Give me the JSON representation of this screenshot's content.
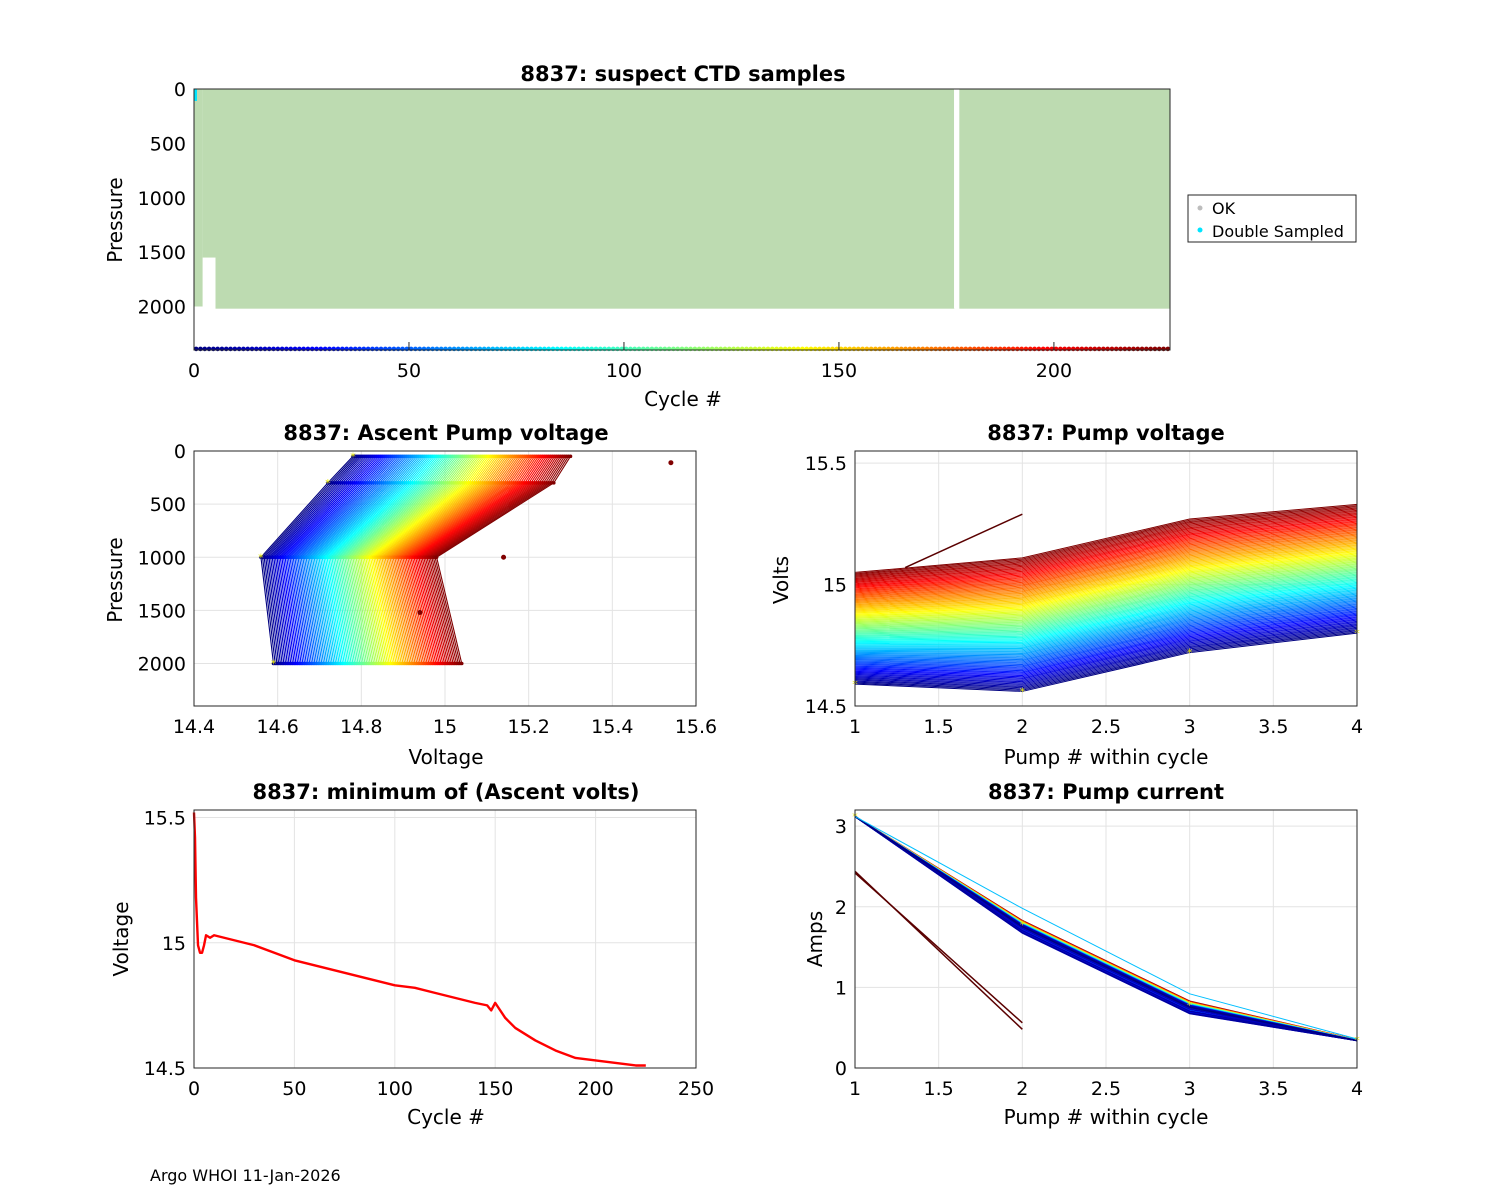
{
  "footer": "Argo WHOI 11-Jan-2026",
  "chart_data": [
    {
      "type": "scatter",
      "title": "8837: suspect CTD samples",
      "xlabel": "Cycle #",
      "ylabel": "Pressure",
      "xlim": [
        0,
        227
      ],
      "ylim": [
        2400,
        0
      ],
      "xticks": [
        0,
        50,
        100,
        150,
        200
      ],
      "yticks": [
        0,
        500,
        1000,
        1500,
        2000
      ],
      "legend": {
        "placement": "east-outside",
        "entries": [
          "OK",
          "Double Sampled"
        ]
      },
      "colors": {
        "ok": "#bddbb1",
        "double": "#00e5ff"
      },
      "profile_depth_segments": [
        {
          "cycles": [
            0,
            2
          ],
          "max_pressure": 2000
        },
        {
          "cycles": [
            2,
            5
          ],
          "max_pressure": 1550
        },
        {
          "cycles": [
            5,
            177
          ],
          "max_pressure": 2020
        },
        {
          "cycles": [
            178,
            227
          ],
          "max_pressure": 2020
        }
      ],
      "gap_cycle": 177,
      "double_sampled": {
        "cycle": 0,
        "pressure_range": [
          0,
          110
        ]
      },
      "colorbar_row_pressure": 2390
    },
    {
      "type": "line",
      "title": "8837: Ascent Pump voltage",
      "xlabel": "Voltage",
      "ylabel": "Pressure",
      "xlim": [
        14.4,
        15.6
      ],
      "ylim": [
        2400,
        0
      ],
      "xticks": [
        14.4,
        14.6,
        14.8,
        15.0,
        15.2,
        15.4,
        15.6
      ],
      "xtick_labels": [
        "14.4",
        "14.6",
        "14.8",
        "15",
        "15.2",
        "15.4",
        "15.6"
      ],
      "yticks": [
        0,
        500,
        1000,
        1500,
        2000
      ],
      "pump_pressures": [
        2000,
        1000,
        300,
        50
      ],
      "first_profile": [
        14.59,
        14.56,
        14.72,
        14.78
      ],
      "last_profile": [
        15.04,
        14.98,
        15.26,
        15.3
      ],
      "outliers": [
        {
          "x": 15.54,
          "y": 110
        },
        {
          "x": 15.14,
          "y": 1000
        },
        {
          "x": 14.94,
          "y": 1520
        }
      ]
    },
    {
      "type": "line",
      "title": "8837: Pump voltage",
      "xlabel": "Pump # within cycle",
      "ylabel": "Volts",
      "xlim": [
        1,
        4
      ],
      "ylim": [
        14.5,
        15.55
      ],
      "xticks": [
        1,
        1.5,
        2,
        2.5,
        3,
        3.5,
        4
      ],
      "xtick_labels": [
        "1",
        "1.5",
        "2",
        "2.5",
        "3",
        "3.5",
        "4"
      ],
      "yticks": [
        14.5,
        15,
        15.5
      ],
      "ytick_labels": [
        "14.5",
        "15",
        "15.5"
      ],
      "first_profile": [
        14.59,
        14.56,
        14.72,
        14.8
      ],
      "last_profile": [
        15.05,
        15.11,
        15.27,
        15.33
      ],
      "short_profiles": [
        {
          "x": [
            1.3,
            2
          ],
          "y": [
            15.07,
            15.29
          ]
        }
      ]
    },
    {
      "type": "line",
      "title": "8837: minimum of (Ascent volts)",
      "xlabel": "Cycle #",
      "ylabel": "Voltage",
      "xlim": [
        0,
        250
      ],
      "ylim": [
        14.5,
        15.53
      ],
      "xticks": [
        0,
        50,
        100,
        150,
        200,
        250
      ],
      "yticks": [
        14.5,
        15,
        15.5
      ],
      "ytick_labels": [
        "14.5",
        "15",
        "15.5"
      ],
      "color": "#ff0000",
      "x": [
        0,
        0.5,
        1,
        2,
        3,
        4,
        5,
        6,
        8,
        10,
        15,
        20,
        30,
        40,
        50,
        60,
        70,
        80,
        90,
        100,
        110,
        120,
        130,
        140,
        146,
        148,
        150,
        155,
        160,
        170,
        180,
        190,
        200,
        210,
        220,
        225
      ],
      "y": [
        15.52,
        15.42,
        15.18,
        14.99,
        14.96,
        14.96,
        14.99,
        15.03,
        15.02,
        15.03,
        15.02,
        15.01,
        14.99,
        14.96,
        14.93,
        14.91,
        14.89,
        14.87,
        14.85,
        14.83,
        14.82,
        14.8,
        14.78,
        14.76,
        14.75,
        14.73,
        14.76,
        14.7,
        14.66,
        14.61,
        14.57,
        14.54,
        14.53,
        14.52,
        14.51,
        14.51
      ]
    },
    {
      "type": "line",
      "title": "8837: Pump current",
      "xlabel": "Pump # within cycle",
      "ylabel": "Amps",
      "xlim": [
        1,
        4
      ],
      "ylim": [
        0,
        3.2
      ],
      "xticks": [
        1,
        1.5,
        2,
        2.5,
        3,
        3.5,
        4
      ],
      "xtick_labels": [
        "1",
        "1.5",
        "2",
        "2.5",
        "3",
        "3.5",
        "4"
      ],
      "yticks": [
        0,
        1,
        2,
        3
      ],
      "first_profile": [
        3.12,
        1.78,
        0.78,
        0.35
      ],
      "last_profile": [
        3.12,
        1.72,
        0.72,
        0.34
      ],
      "outlier_profile": {
        "y": [
          3.12,
          1.98,
          0.92,
          0.36
        ],
        "color": "#00bfff"
      },
      "short_profiles": [
        {
          "x": [
            1,
            2
          ],
          "y": [
            2.44,
            0.48
          ]
        },
        {
          "x": [
            1,
            2
          ],
          "y": [
            2.42,
            0.56
          ]
        }
      ]
    }
  ]
}
